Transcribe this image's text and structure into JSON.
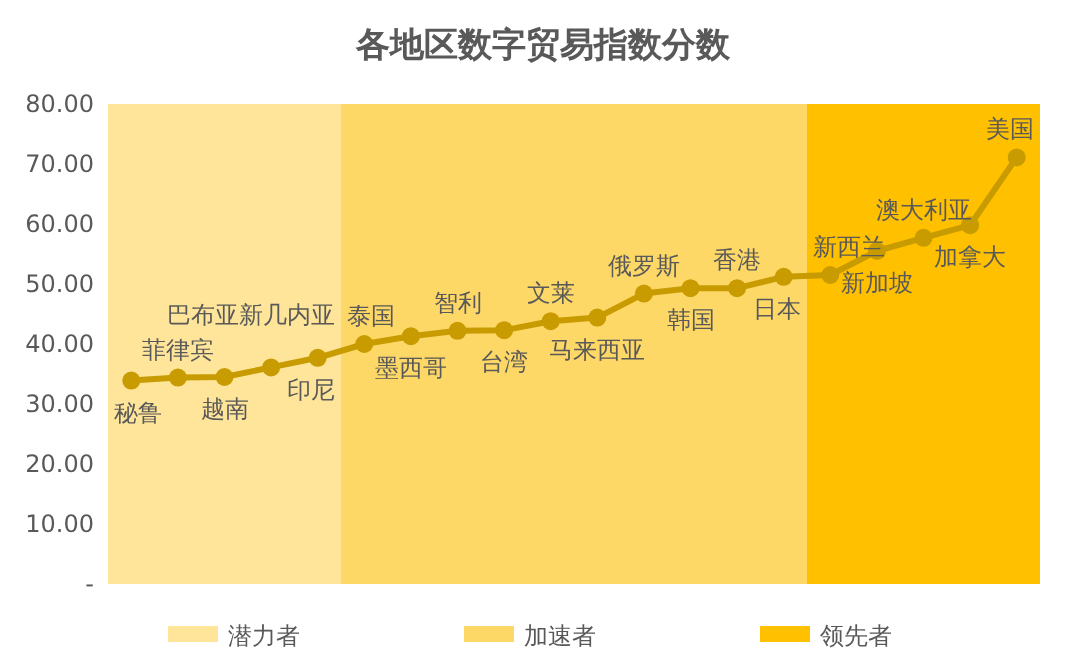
{
  "chart_data": {
    "type": "line",
    "title": "各地区数字贸易指数分数",
    "categories": [
      "秘鲁",
      "菲律宾",
      "越南",
      "巴布亚新几内亚",
      "印尼",
      "泰国",
      "墨西哥",
      "智利",
      "台湾",
      "文莱",
      "马来西亚",
      "俄罗斯",
      "韩国",
      "香港",
      "日本",
      "新西兰",
      "新加坡",
      "澳大利亚",
      "加拿大",
      "美国"
    ],
    "series": [
      {
        "color": "#c89b00",
        "values": [
          33.9,
          34.4,
          34.5,
          36.1,
          37.7,
          40.0,
          41.3,
          42.2,
          42.3,
          43.8,
          44.4,
          48.4,
          49.3,
          49.3,
          51.2,
          51.5,
          55.5,
          57.7,
          59.8,
          71.1
        ]
      }
    ],
    "ylim": [
      0,
      80
    ],
    "yticks": [
      {
        "value": 0,
        "label": "-"
      },
      {
        "value": 10,
        "label": "10.00"
      },
      {
        "value": 20,
        "label": "20.00"
      },
      {
        "value": 30,
        "label": "30.00"
      },
      {
        "value": 40,
        "label": "40.00"
      },
      {
        "value": 50,
        "label": "50.00"
      },
      {
        "value": 60,
        "label": "60.00"
      },
      {
        "value": 70,
        "label": "70.00"
      },
      {
        "value": 80,
        "label": "80.00"
      }
    ],
    "bands": [
      {
        "axis": "x",
        "from": "秘鲁",
        "to": "印尼",
        "label": "潜力者",
        "color": "#fee599"
      },
      {
        "axis": "x",
        "from": "泰国",
        "to": "日本",
        "label": "加速者",
        "color": "#fed866"
      },
      {
        "axis": "x",
        "from": "新西兰",
        "to": "美国",
        "label": "领先者",
        "color": "#ffc000"
      }
    ],
    "tick_labels": "y",
    "grid": false,
    "legend": "bottom",
    "marker": "circle",
    "line_style": "solid"
  }
}
